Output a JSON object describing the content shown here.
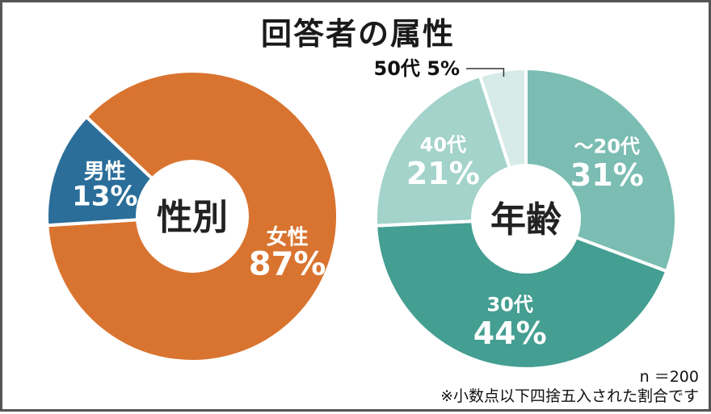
{
  "title": "回答者の属性",
  "footnote_n": "n ＝200",
  "footnote_rounding": "※小数点以下四捨五入された割合です",
  "chart_data": [
    {
      "type": "pie",
      "center_label": "性別",
      "slices": [
        {
          "label": "女性",
          "value": 87,
          "pct_label": "87%",
          "color": "#d97430"
        },
        {
          "label": "男性",
          "value": 13,
          "pct_label": "13%",
          "color": "#2a6e99"
        }
      ]
    },
    {
      "type": "pie",
      "center_label": "年齢",
      "slices": [
        {
          "label": "～20代",
          "value": 31,
          "pct_label": "31%",
          "color": "#7bbdb2"
        },
        {
          "label": "30代",
          "value": 44,
          "pct_label": "44%",
          "color": "#449e92"
        },
        {
          "label": "40代",
          "value": 21,
          "pct_label": "21%",
          "color": "#a3d3cb"
        },
        {
          "label": "50代",
          "value": 5,
          "pct_label": "5%",
          "color": "#d6ebe8"
        }
      ]
    }
  ]
}
